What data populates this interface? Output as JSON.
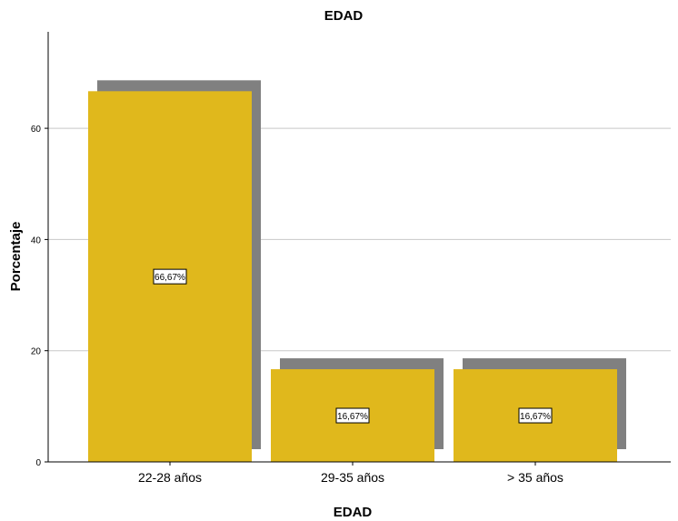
{
  "chart_data": {
    "type": "bar",
    "title": "EDAD",
    "xlabel": "EDAD",
    "ylabel": "Porcentaje",
    "categories": [
      "22-28 años",
      "29-35 años",
      "> 35 años"
    ],
    "values": [
      66.67,
      16.67,
      16.67
    ],
    "data_labels": [
      "66,67%",
      "16,67%",
      "16,67%"
    ],
    "yticks": [
      0,
      20,
      40,
      60
    ],
    "ylim": [
      0,
      77
    ],
    "grid": true,
    "bar_color": "#e0b81c",
    "shadow_color": "#808080"
  }
}
